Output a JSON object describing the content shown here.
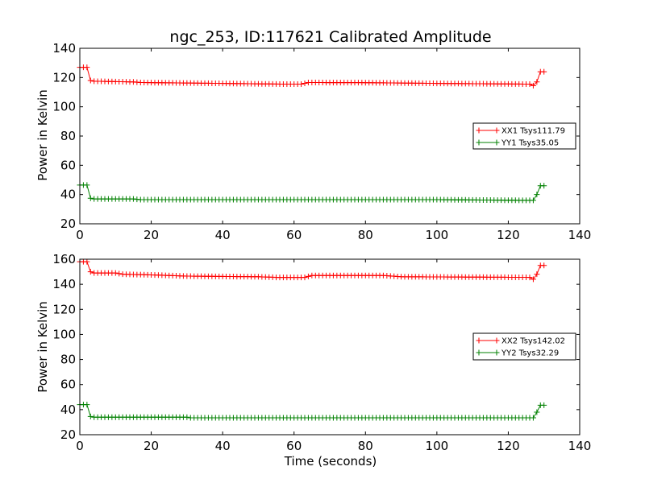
{
  "chart_data": {
    "title": "ngc_253, ID:117621 Calibrated Amplitude",
    "xlabel": "Time (seconds)",
    "colors": {
      "xx": "#ff0000",
      "yy": "#008000"
    },
    "panels": [
      {
        "type": "line",
        "ylabel": "Power in Kelvin",
        "xlim": [
          0,
          140
        ],
        "ylim": [
          20,
          140
        ],
        "xticks": [
          0,
          20,
          40,
          60,
          80,
          100,
          120,
          140
        ],
        "yticks": [
          20,
          40,
          60,
          80,
          100,
          120,
          140
        ],
        "legend_position": "center-right",
        "series": [
          {
            "name": "XX1 Tsys111.79",
            "color": "#ff0000",
            "x_range": [
              0,
              130
            ],
            "x_step": 1,
            "segments": [
              [
                0,
                127
              ],
              [
                2,
                127
              ],
              [
                3,
                118
              ],
              [
                4,
                117.5
              ],
              [
                15,
                117
              ],
              [
                17,
                116.6
              ],
              [
                40,
                116
              ],
              [
                57,
                115.5
              ],
              [
                62,
                115.5
              ],
              [
                64,
                116.6
              ],
              [
                80,
                116.5
              ],
              [
                100,
                116
              ],
              [
                126,
                115.5
              ],
              [
                127,
                114.5
              ],
              [
                128,
                117
              ],
              [
                129,
                124
              ],
              [
                130,
                124
              ]
            ]
          },
          {
            "name": "YY1 Tsys35.05",
            "color": "#008000",
            "x_range": [
              0,
              130
            ],
            "x_step": 1,
            "segments": [
              [
                0,
                46.5
              ],
              [
                2,
                46.5
              ],
              [
                3,
                37.5
              ],
              [
                4,
                37
              ],
              [
                15,
                37
              ],
              [
                17,
                36.5
              ],
              [
                100,
                36.5
              ],
              [
                126,
                36
              ],
              [
                127,
                36
              ],
              [
                128,
                40
              ],
              [
                129,
                46
              ],
              [
                130,
                46
              ]
            ]
          }
        ]
      },
      {
        "type": "line",
        "ylabel": "Power in Kelvin",
        "xlim": [
          0,
          140
        ],
        "ylim": [
          20,
          160
        ],
        "xticks": [
          0,
          20,
          40,
          60,
          80,
          100,
          120,
          140
        ],
        "yticks": [
          20,
          40,
          60,
          80,
          100,
          120,
          140,
          160
        ],
        "legend_position": "center-right",
        "series": [
          {
            "name": "XX2 Tsys142.02",
            "color": "#ff0000",
            "x_range": [
              0,
              130
            ],
            "x_step": 1,
            "segments": [
              [
                0,
                158
              ],
              [
                2,
                158
              ],
              [
                3,
                150
              ],
              [
                4,
                149
              ],
              [
                10,
                149
              ],
              [
                12,
                148
              ],
              [
                20,
                147.5
              ],
              [
                30,
                146.5
              ],
              [
                50,
                146
              ],
              [
                55,
                145.5
              ],
              [
                63,
                145.5
              ],
              [
                65,
                147
              ],
              [
                85,
                147
              ],
              [
                90,
                146
              ],
              [
                126,
                145.5
              ],
              [
                127,
                144
              ],
              [
                128,
                148
              ],
              [
                129,
                155
              ],
              [
                130,
                155
              ]
            ]
          },
          {
            "name": "YY2 Tsys32.29",
            "color": "#008000",
            "x_range": [
              0,
              130
            ],
            "x_step": 1,
            "segments": [
              [
                0,
                44
              ],
              [
                2,
                44
              ],
              [
                3,
                34.5
              ],
              [
                4,
                34
              ],
              [
                30,
                34
              ],
              [
                31,
                33.5
              ],
              [
                126,
                33.5
              ],
              [
                127,
                33.5
              ],
              [
                128,
                38
              ],
              [
                129,
                43.5
              ],
              [
                130,
                43.5
              ]
            ]
          }
        ]
      }
    ]
  }
}
